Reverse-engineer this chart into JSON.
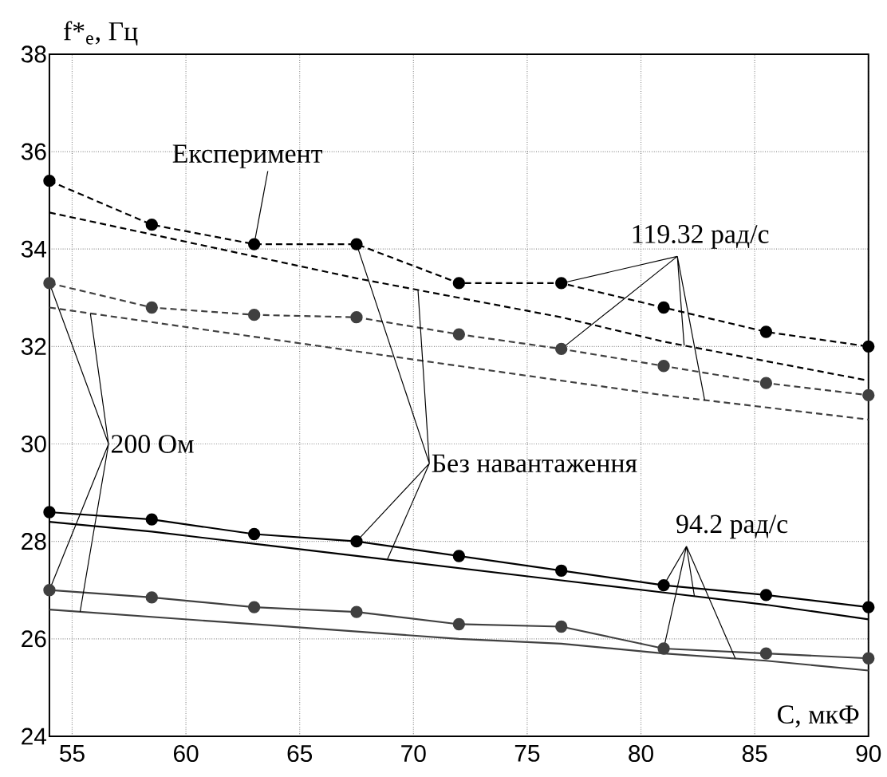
{
  "chart_data": {
    "type": "line",
    "xlabel": "C, мкФ",
    "ylabel": "f*$_{e}$, Гц",
    "x": [
      54,
      58.5,
      63,
      67.5,
      72,
      76.5,
      81,
      85.5,
      90
    ],
    "xlim": [
      54,
      90
    ],
    "ylim": [
      24,
      38
    ],
    "xticks": [
      55,
      60,
      65,
      70,
      75,
      80,
      85,
      90
    ],
    "yticks": [
      24,
      26,
      28,
      30,
      32,
      34,
      36,
      38
    ],
    "grid": true,
    "series": [
      {
        "color": "#000000",
        "marker": "circle",
        "line_style": "dashed",
        "values": [
          35.4,
          34.5,
          34.1,
          34.1,
          33.3,
          33.3,
          32.8,
          32.3,
          32.0
        ]
      },
      {
        "color": "#000000",
        "marker": "none",
        "line_style": "dashed",
        "values": [
          34.75,
          34.3,
          33.85,
          33.4,
          33.0,
          32.6,
          32.1,
          31.7,
          31.3
        ]
      },
      {
        "color": "#404040",
        "marker": "circle",
        "line_style": "dashed",
        "values": [
          33.3,
          32.8,
          32.65,
          32.6,
          32.25,
          31.95,
          31.6,
          31.25,
          31.0
        ]
      },
      {
        "color": "#404040",
        "marker": "none",
        "line_style": "dashed",
        "values": [
          32.8,
          32.5,
          32.2,
          31.9,
          31.6,
          31.3,
          31.0,
          30.75,
          30.5
        ]
      },
      {
        "color": "#000000",
        "marker": "circle",
        "line_style": "solid",
        "values": [
          28.6,
          28.45,
          28.15,
          28.0,
          27.7,
          27.4,
          27.1,
          26.9,
          26.65
        ]
      },
      {
        "color": "#000000",
        "marker": "none",
        "line_style": "solid",
        "values": [
          28.4,
          28.2,
          27.95,
          27.7,
          27.45,
          27.2,
          26.95,
          26.7,
          26.4
        ]
      },
      {
        "color": "#404040",
        "marker": "circle",
        "line_style": "solid",
        "values": [
          27.0,
          26.85,
          26.65,
          26.55,
          26.3,
          26.25,
          25.8,
          25.7,
          25.6
        ]
      },
      {
        "color": "#404040",
        "marker": "none",
        "line_style": "solid",
        "values": [
          26.6,
          26.45,
          26.3,
          26.15,
          26.0,
          25.9,
          25.7,
          25.55,
          25.35
        ]
      }
    ],
    "annotations": [
      {
        "text": "Експеримент",
        "x": 63,
        "y": 34.1
      },
      {
        "text": "119.32 рад/с",
        "x": 76.5,
        "y": 33.3
      },
      {
        "text": "200 Ом",
        "x": 54,
        "y": 33.3
      },
      {
        "text": "Без навантаження",
        "x": 67.5,
        "y": 34.1
      },
      {
        "text": "94.2 рад/с",
        "x": 81,
        "y": 27.1
      }
    ]
  }
}
